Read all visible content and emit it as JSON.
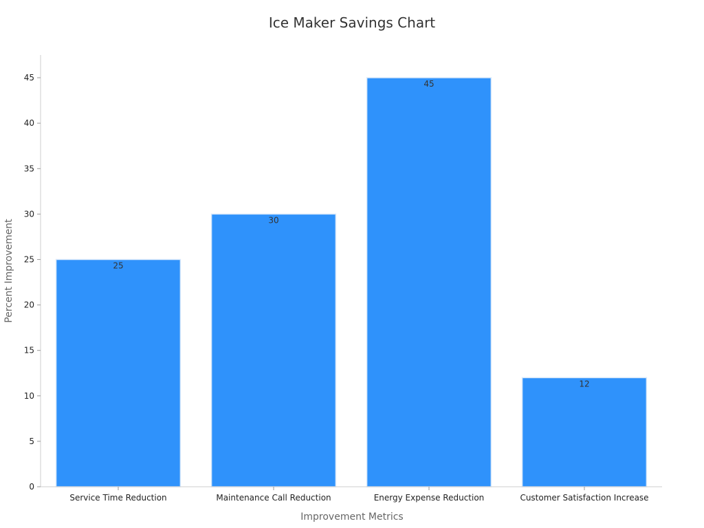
{
  "chart_data": {
    "type": "bar",
    "title": "Ice Maker Savings Chart",
    "xlabel": "Improvement Metrics",
    "ylabel": "Percent Improvement",
    "categories": [
      "Service Time Reduction",
      "Maintenance Call Reduction",
      "Energy Expense Reduction",
      "Customer Satisfaction Increase"
    ],
    "values": [
      25,
      30,
      45,
      12
    ],
    "ylim": [
      0,
      47.5
    ],
    "yticks": [
      0,
      5,
      10,
      15,
      20,
      25,
      30,
      35,
      40,
      45
    ],
    "grid": false,
    "bar_color": "#2f92fb",
    "bar_edge_color": "#d8e8fa"
  }
}
